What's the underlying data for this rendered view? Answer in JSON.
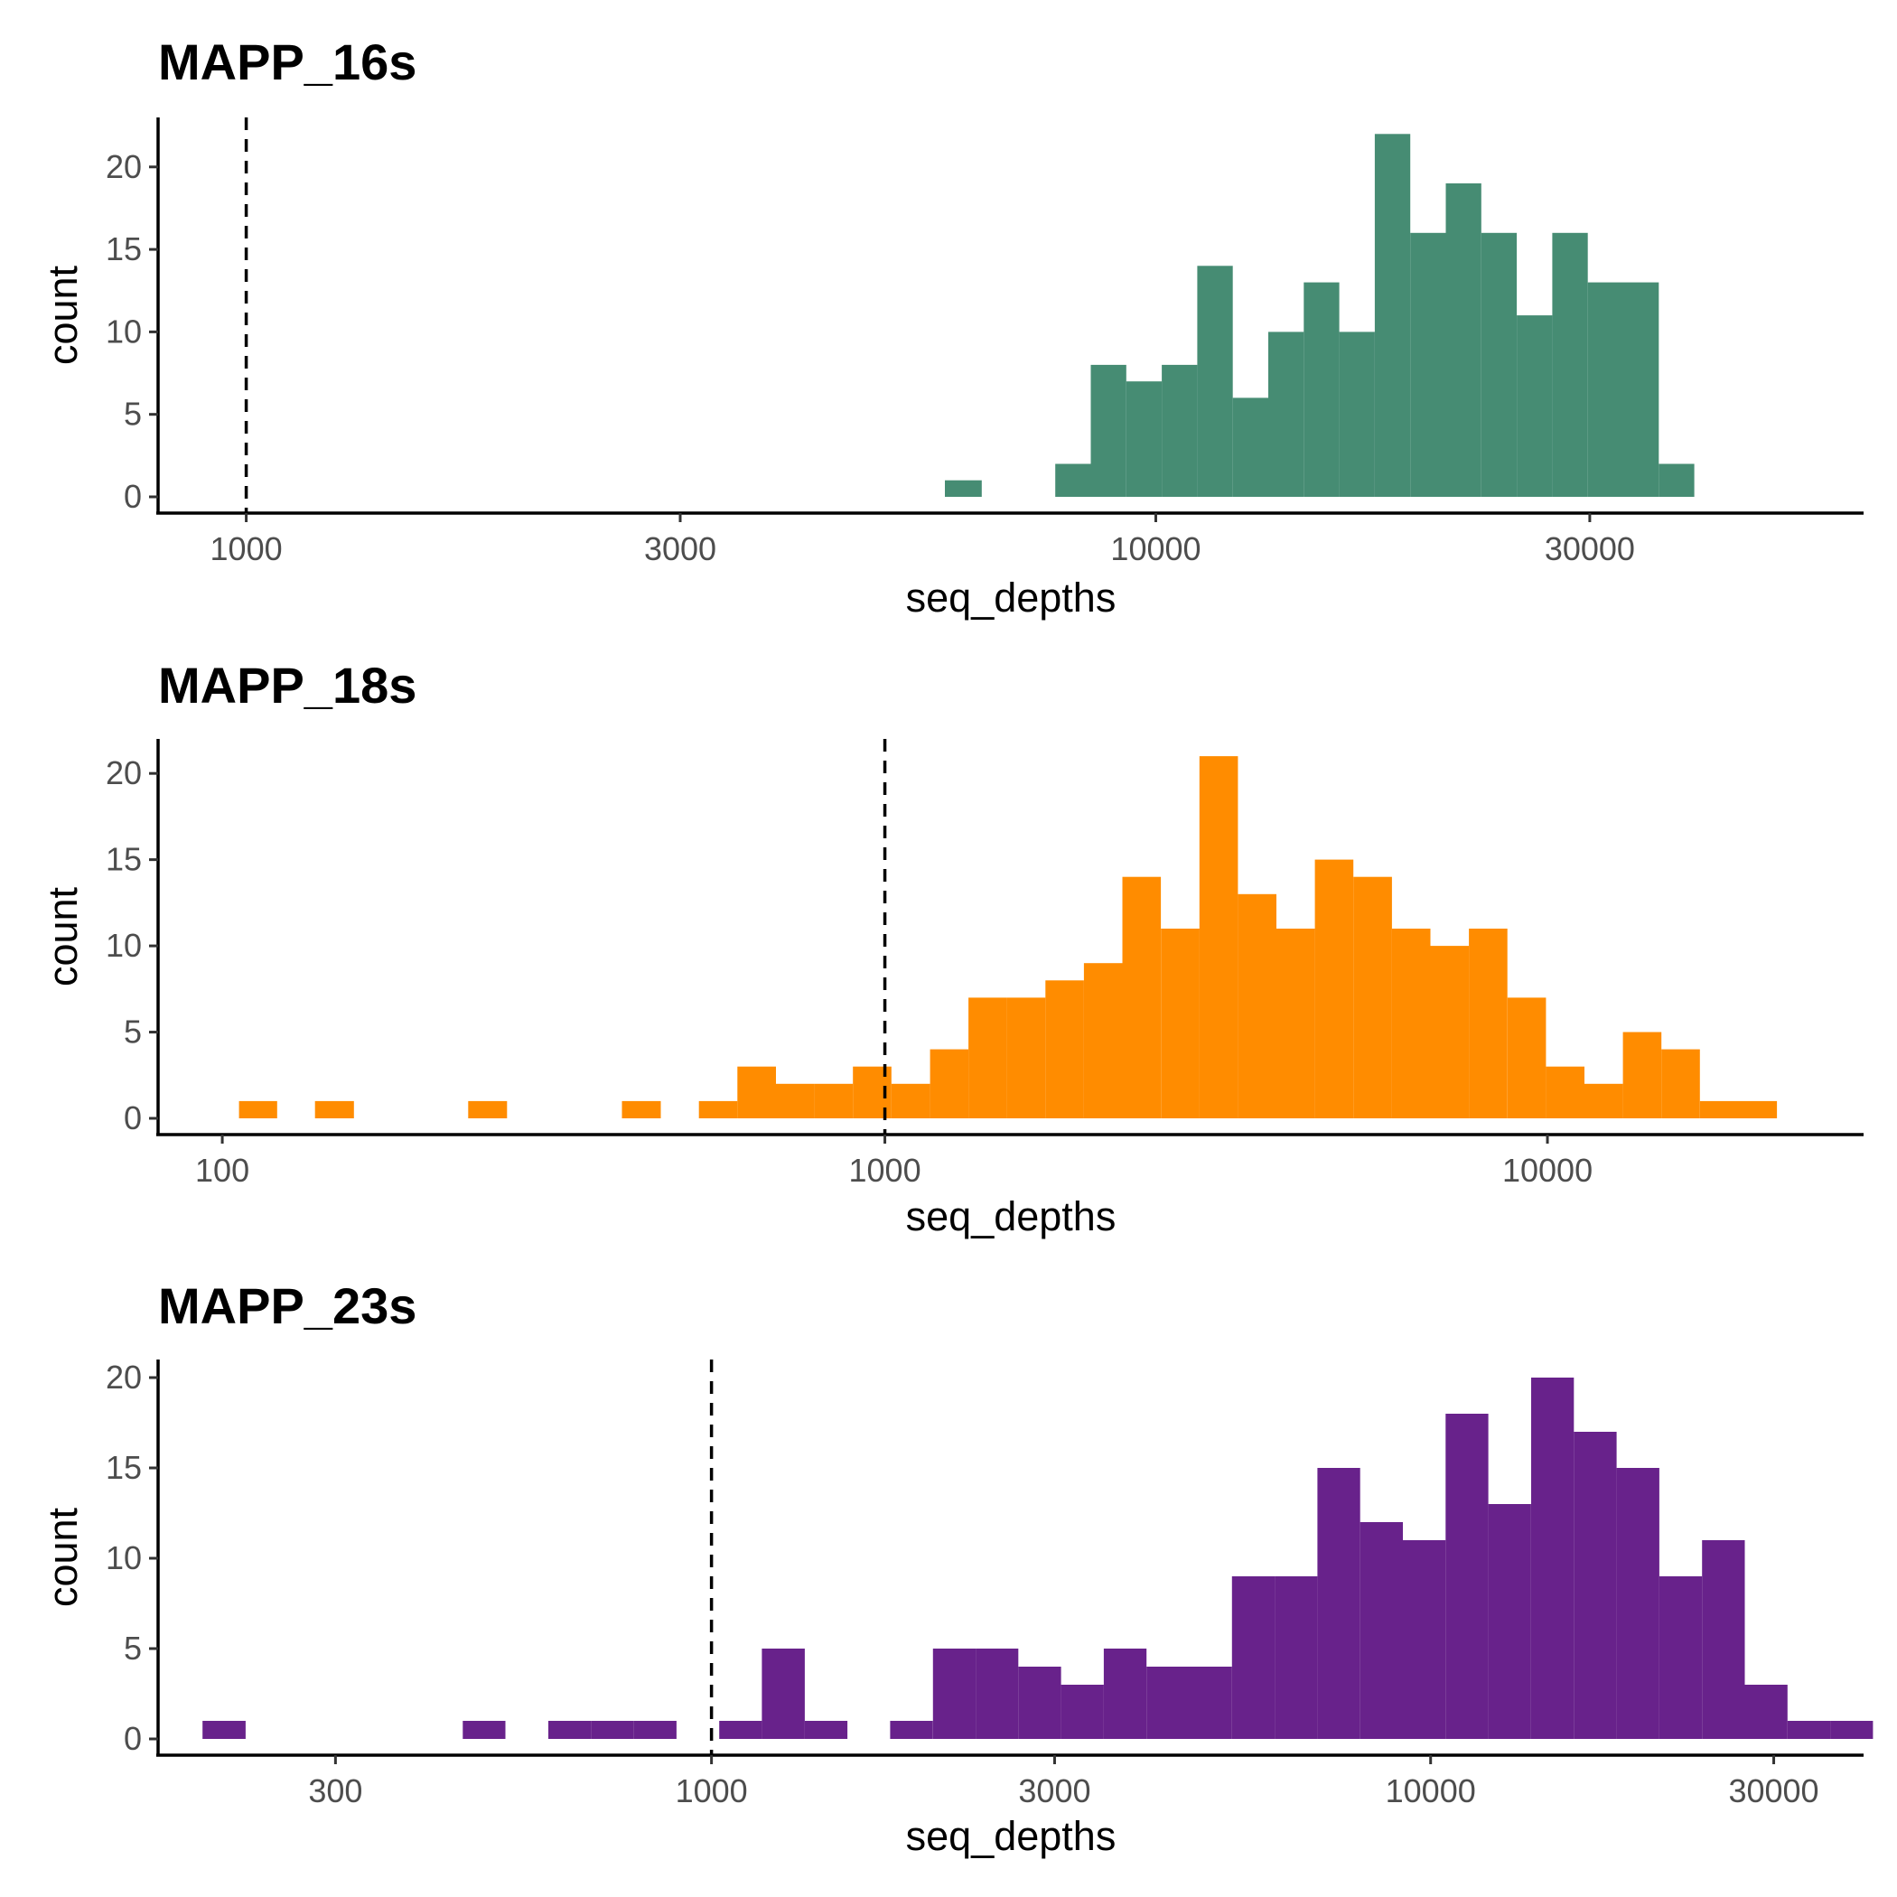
{
  "chart_data": [
    {
      "type": "bar",
      "title": "MAPP_16s",
      "xlabel": "seq_depths",
      "ylabel": "count",
      "x_scale": "log10",
      "xlim": [
        800,
        60000
      ],
      "ylim": [
        0,
        23
      ],
      "x_ticks": [
        1000,
        3000,
        10000,
        30000
      ],
      "x_tick_labels": [
        "1000",
        "3000",
        "10000",
        "30000"
      ],
      "y_ticks": [
        0,
        5,
        10,
        15,
        20
      ],
      "y_tick_labels": [
        "0",
        "5",
        "10",
        "15",
        "20"
      ],
      "reference_line_x": 1000,
      "color": "#468C73",
      "bins": [
        {
          "from": 5863,
          "to": 6437,
          "count": 1
        },
        {
          "from": 7754,
          "to": 8483,
          "count": 2
        },
        {
          "from": 8483,
          "to": 9280,
          "count": 8
        },
        {
          "from": 9280,
          "to": 10153,
          "count": 7
        },
        {
          "from": 10153,
          "to": 11108,
          "count": 8
        },
        {
          "from": 11108,
          "to": 12152,
          "count": 14
        },
        {
          "from": 12152,
          "to": 13295,
          "count": 6
        },
        {
          "from": 13295,
          "to": 14545,
          "count": 10
        },
        {
          "from": 14545,
          "to": 15913,
          "count": 13
        },
        {
          "from": 15913,
          "to": 17409,
          "count": 10
        },
        {
          "from": 17409,
          "to": 19046,
          "count": 22
        },
        {
          "from": 19046,
          "to": 20837,
          "count": 16
        },
        {
          "from": 20837,
          "to": 22797,
          "count": 19
        },
        {
          "from": 22797,
          "to": 24941,
          "count": 16
        },
        {
          "from": 24941,
          "to": 27286,
          "count": 11
        },
        {
          "from": 27286,
          "to": 29852,
          "count": 16
        },
        {
          "from": 29852,
          "to": 32659,
          "count": 13
        },
        {
          "from": 32659,
          "to": 35731,
          "count": 13
        },
        {
          "from": 35731,
          "to": 39091,
          "count": 2
        }
      ]
    },
    {
      "type": "bar",
      "title": "MAPP_18s",
      "xlabel": "seq_depths",
      "ylabel": "count",
      "x_scale": "log10",
      "xlim": [
        80,
        30000
      ],
      "ylim": [
        0,
        22
      ],
      "x_ticks": [
        100,
        1000,
        10000
      ],
      "x_tick_labels": [
        "100",
        "1000",
        "10000"
      ],
      "y_ticks": [
        0,
        5,
        10,
        15,
        20
      ],
      "y_tick_labels": [
        "0",
        "5",
        "10",
        "15",
        "20"
      ],
      "reference_line_x": 1000,
      "color": "#FF8C00",
      "bins": [
        {
          "from": 106,
          "to": 121,
          "count": 1
        },
        {
          "from": 138,
          "to": 158,
          "count": 1
        },
        {
          "from": 235,
          "to": 269,
          "count": 1
        },
        {
          "from": 401,
          "to": 459,
          "count": 1
        },
        {
          "from": 524,
          "to": 599,
          "count": 1
        },
        {
          "from": 599,
          "to": 685,
          "count": 3
        },
        {
          "from": 685,
          "to": 783,
          "count": 2
        },
        {
          "from": 783,
          "to": 895,
          "count": 2
        },
        {
          "from": 895,
          "to": 1023,
          "count": 3
        },
        {
          "from": 1023,
          "to": 1170,
          "count": 2
        },
        {
          "from": 1170,
          "to": 1337,
          "count": 4
        },
        {
          "from": 1337,
          "to": 1528,
          "count": 7
        },
        {
          "from": 1528,
          "to": 1747,
          "count": 7
        },
        {
          "from": 1747,
          "to": 1997,
          "count": 8
        },
        {
          "from": 1997,
          "to": 2283,
          "count": 9
        },
        {
          "from": 2283,
          "to": 2610,
          "count": 14
        },
        {
          "from": 2610,
          "to": 2984,
          "count": 11
        },
        {
          "from": 2984,
          "to": 3411,
          "count": 21
        },
        {
          "from": 3411,
          "to": 3899,
          "count": 13
        },
        {
          "from": 3899,
          "to": 4457,
          "count": 11
        },
        {
          "from": 4457,
          "to": 5095,
          "count": 15
        },
        {
          "from": 5095,
          "to": 5825,
          "count": 14
        },
        {
          "from": 5825,
          "to": 6659,
          "count": 11
        },
        {
          "from": 6659,
          "to": 7612,
          "count": 10
        },
        {
          "from": 7612,
          "to": 8702,
          "count": 11
        },
        {
          "from": 8702,
          "to": 9948,
          "count": 7
        },
        {
          "from": 9948,
          "to": 11372,
          "count": 3
        },
        {
          "from": 11372,
          "to": 13000,
          "count": 2
        },
        {
          "from": 13000,
          "to": 14861,
          "count": 5
        },
        {
          "from": 14861,
          "to": 16989,
          "count": 4
        },
        {
          "from": 16989,
          "to": 19421,
          "count": 1
        },
        {
          "from": 19421,
          "to": 22201,
          "count": 1
        }
      ]
    },
    {
      "type": "bar",
      "title": "MAPP_23s",
      "xlabel": "seq_depths",
      "ylabel": "count",
      "x_scale": "log10",
      "xlim": [
        170,
        40000
      ],
      "ylim": [
        0,
        21
      ],
      "x_ticks": [
        300,
        1000,
        3000,
        10000,
        30000
      ],
      "x_tick_labels": [
        "300",
        "1000",
        "3000",
        "10000",
        "30000"
      ],
      "y_ticks": [
        0,
        5,
        10,
        15,
        20
      ],
      "y_tick_labels": [
        "0",
        "5",
        "10",
        "15",
        "20"
      ],
      "reference_line_x": 1000,
      "color": "#68228B",
      "bins": [
        {
          "from": 196,
          "to": 225,
          "count": 1
        },
        {
          "from": 451,
          "to": 517,
          "count": 1
        },
        {
          "from": 593,
          "to": 680,
          "count": 1
        },
        {
          "from": 680,
          "to": 779,
          "count": 1
        },
        {
          "from": 779,
          "to": 894,
          "count": 1
        },
        {
          "from": 1025,
          "to": 1175,
          "count": 1
        },
        {
          "from": 1175,
          "to": 1348,
          "count": 5
        },
        {
          "from": 1348,
          "to": 1545,
          "count": 1
        },
        {
          "from": 1772,
          "to": 2032,
          "count": 1
        },
        {
          "from": 2032,
          "to": 2330,
          "count": 5
        },
        {
          "from": 2330,
          "to": 2671,
          "count": 5
        },
        {
          "from": 2671,
          "to": 3063,
          "count": 4
        },
        {
          "from": 3063,
          "to": 3512,
          "count": 3
        },
        {
          "from": 3512,
          "to": 4027,
          "count": 5
        },
        {
          "from": 4027,
          "to": 4617,
          "count": 4
        },
        {
          "from": 4617,
          "to": 5294,
          "count": 4
        },
        {
          "from": 5294,
          "to": 6070,
          "count": 9
        },
        {
          "from": 6070,
          "to": 6960,
          "count": 9
        },
        {
          "from": 6960,
          "to": 7981,
          "count": 15
        },
        {
          "from": 7981,
          "to": 9151,
          "count": 12
        },
        {
          "from": 9151,
          "to": 10493,
          "count": 11
        },
        {
          "from": 10493,
          "to": 12031,
          "count": 18
        },
        {
          "from": 12031,
          "to": 13796,
          "count": 13
        },
        {
          "from": 13796,
          "to": 15819,
          "count": 20
        },
        {
          "from": 15819,
          "to": 18139,
          "count": 17
        },
        {
          "from": 18139,
          "to": 20798,
          "count": 15
        },
        {
          "from": 20798,
          "to": 23847,
          "count": 9
        },
        {
          "from": 23847,
          "to": 27344,
          "count": 11
        },
        {
          "from": 27344,
          "to": 31353,
          "count": 3
        },
        {
          "from": 31353,
          "to": 35951,
          "count": 1
        },
        {
          "from": 35951,
          "to": 41221,
          "count": 1
        }
      ]
    }
  ]
}
